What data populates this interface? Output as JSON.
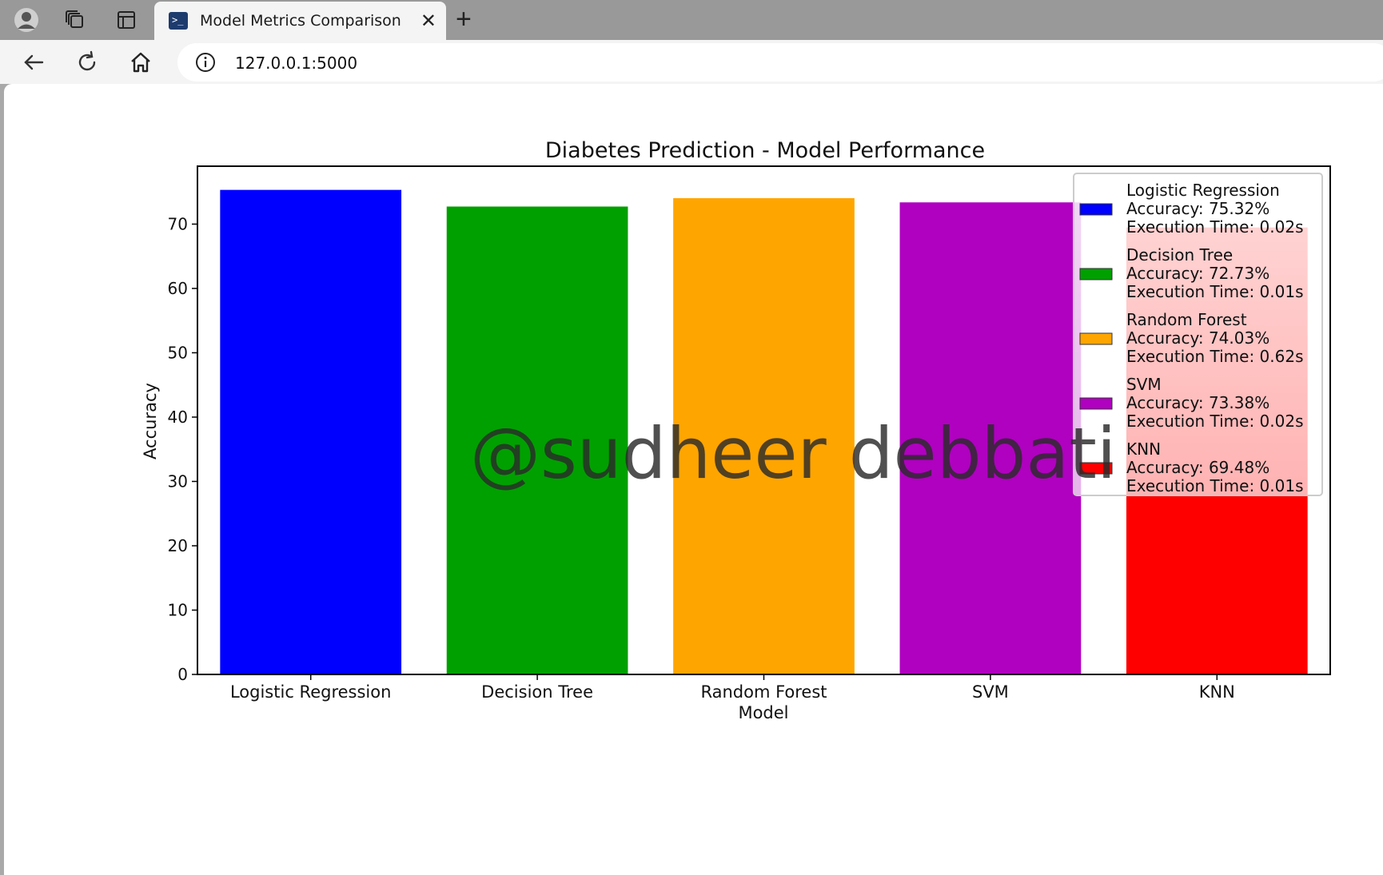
{
  "browser": {
    "tab_title": "Model Metrics Comparison",
    "tab_favicon_glyph": ">_",
    "close_glyph": "✕",
    "new_tab_glyph": "+",
    "url": "127.0.0.1:5000",
    "icons": [
      "profile-icon",
      "collections-icon",
      "tab-actions-icon",
      "back-icon",
      "refresh-icon",
      "home-icon",
      "info-icon"
    ]
  },
  "chart_data": {
    "type": "bar",
    "title": "Diabetes Prediction - Model Performance",
    "xlabel": "Model",
    "ylabel": "Accuracy",
    "categories": [
      "Logistic Regression",
      "Decision Tree",
      "Random Forest",
      "SVM",
      "KNN"
    ],
    "values": [
      75.32,
      72.73,
      74.03,
      73.38,
      69.48
    ],
    "colors": [
      "#0000ff",
      "#00a000",
      "#ffa500",
      "#b000c0",
      "#ff0000"
    ],
    "yticks": [
      0,
      10,
      20,
      30,
      40,
      50,
      60,
      70
    ],
    "ylim": [
      0,
      79
    ],
    "grid": false,
    "legend_position": "top-right",
    "legend": [
      {
        "lines": [
          "Logistic Regression",
          "Accuracy: 75.32%",
          "Execution Time: 0.02s"
        ]
      },
      {
        "lines": [
          "Decision Tree",
          "Accuracy: 72.73%",
          "Execution Time: 0.01s"
        ]
      },
      {
        "lines": [
          "Random Forest",
          "Accuracy: 74.03%",
          "Execution Time: 0.62s"
        ]
      },
      {
        "lines": [
          "SVM",
          "Accuracy: 73.38%",
          "Execution Time: 0.02s"
        ]
      },
      {
        "lines": [
          "KNN",
          "Accuracy: 69.48%",
          "Execution Time: 0.01s"
        ]
      }
    ],
    "watermark": "@sudheer debbati"
  }
}
